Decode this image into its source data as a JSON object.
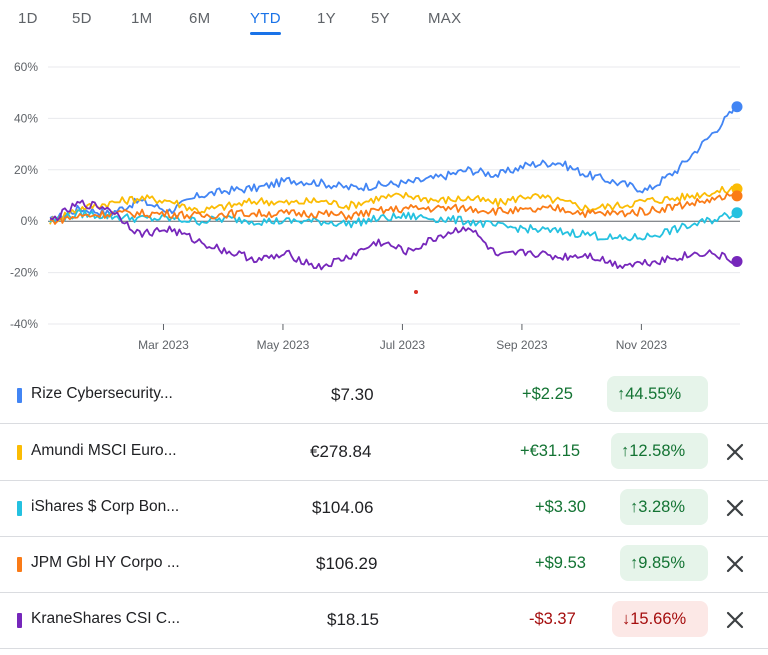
{
  "tabs": [
    "1D",
    "5D",
    "1M",
    "6M",
    "YTD",
    "1Y",
    "5Y",
    "MAX"
  ],
  "active_tab": "YTD",
  "chart_data": {
    "type": "line",
    "y_tick_labels": [
      "60%",
      "40%",
      "20%",
      "0%",
      "-20%",
      "-40%"
    ],
    "x_tick_labels": [
      "Mar 2023",
      "May 2023",
      "Jul 2023",
      "Sep 2023",
      "Nov 2023"
    ],
    "ylim": [
      -40,
      60
    ],
    "grid": true,
    "x_months": [
      0,
      1,
      2,
      3,
      4,
      5,
      6,
      7,
      8,
      9,
      10,
      11,
      12,
      13,
      14,
      15,
      16,
      17,
      18,
      19,
      20,
      21,
      22,
      23
    ],
    "series": [
      {
        "name": "Rize Cybersecurity...",
        "color": "#4285f4",
        "values": [
          0,
          5,
          3,
          8,
          4,
          10,
          12,
          13,
          16,
          15,
          13,
          14,
          15,
          17,
          20,
          18,
          22,
          23,
          18,
          15,
          12,
          20,
          32,
          44.55
        ]
      },
      {
        "name": "Amundi MSCI Euro...",
        "color": "#fbbc04",
        "values": [
          0,
          5,
          7,
          9,
          8,
          4,
          6,
          8,
          7,
          8,
          6,
          9,
          10,
          8,
          9,
          7,
          10,
          8,
          5,
          6,
          8,
          9,
          11,
          12.58
        ]
      },
      {
        "name": "iShares $ Corp Bon...",
        "color": "#24c1e0",
        "values": [
          0,
          3,
          2,
          1,
          1,
          0,
          1,
          0,
          0,
          0,
          -1,
          1,
          2,
          1,
          0,
          -2,
          -3,
          -4,
          -5,
          -7,
          -6,
          -3,
          0,
          3.28
        ]
      },
      {
        "name": "JPM Gbl HY Corpo ...",
        "color": "#fa7b17",
        "values": [
          0,
          2,
          3,
          3,
          3,
          2,
          3,
          3,
          3,
          3,
          2,
          4,
          5,
          5,
          5,
          4,
          4,
          5,
          3,
          3,
          4,
          6,
          8,
          9.85
        ]
      },
      {
        "name": "KraneShares CSI C...",
        "color": "#7627bb",
        "values": [
          0,
          7,
          5,
          -5,
          -3,
          -8,
          -12,
          -15,
          -13,
          -18,
          -14,
          -8,
          -12,
          -6,
          -2,
          -14,
          -12,
          -14,
          -13,
          -17,
          -16,
          -14,
          -12,
          -15.66
        ]
      }
    ]
  },
  "holdings": [
    {
      "name": "Rize Cybersecurity...",
      "color": "#4285f4",
      "price": "$7.30",
      "change": "+$2.25",
      "pct": "↑44.55%",
      "dir": "up",
      "removable": false
    },
    {
      "name": "Amundi MSCI Euro...",
      "color": "#fbbc04",
      "price": "€278.84",
      "change": "+€31.15",
      "pct": "↑12.58%",
      "dir": "up",
      "removable": true
    },
    {
      "name": "iShares $ Corp Bon...",
      "color": "#24c1e0",
      "price": "$104.06",
      "change": "+$3.30",
      "pct": "↑3.28%",
      "dir": "up",
      "removable": true
    },
    {
      "name": "JPM Gbl HY Corpo ...",
      "color": "#fa7b17",
      "price": "$106.29",
      "change": "+$9.53",
      "pct": "↑9.85%",
      "dir": "up",
      "removable": true
    },
    {
      "name": "KraneShares CSI C...",
      "color": "#7627bb",
      "price": "$18.15",
      "change": "-$3.37",
      "pct": "↓15.66%",
      "dir": "down",
      "removable": true
    }
  ]
}
